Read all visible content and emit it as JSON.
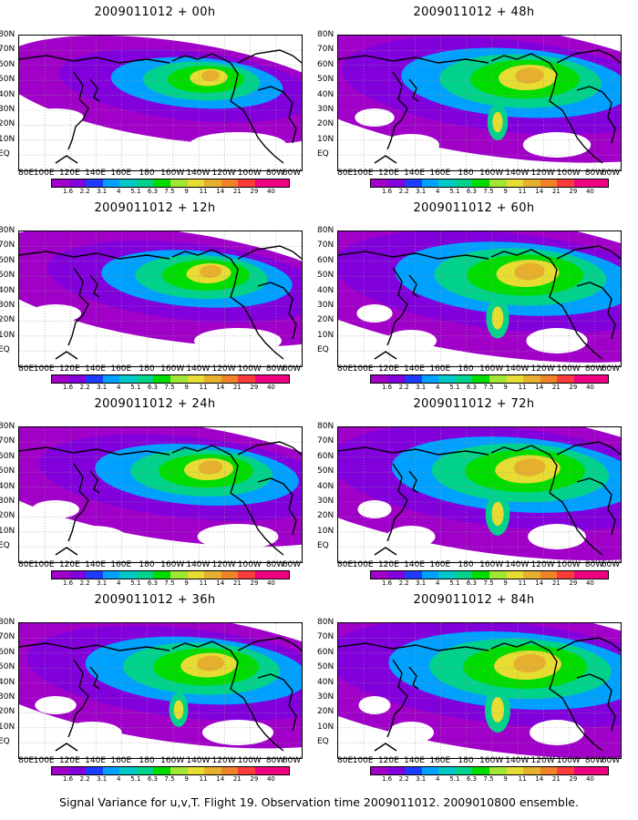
{
  "panels": [
    {
      "title": "2009011012 + 00h"
    },
    {
      "title": "2009011012 + 48h"
    },
    {
      "title": "2009011012 + 12h"
    },
    {
      "title": "2009011012 + 60h"
    },
    {
      "title": "2009011012 + 24h"
    },
    {
      "title": "2009011012 + 72h"
    },
    {
      "title": "2009011012 + 36h"
    },
    {
      "title": "2009011012 + 84h"
    }
  ],
  "lat_labels": [
    "80N",
    "70N",
    "60N",
    "50N",
    "40N",
    "30N",
    "20N",
    "10N",
    "EQ"
  ],
  "lon_labels": [
    "80E",
    "100E",
    "120E",
    "140E",
    "160E",
    "180",
    "160W",
    "140W",
    "120W",
    "100W",
    "80W",
    "60W"
  ],
  "colorbar": {
    "labels": [
      "1.6",
      "2.2",
      "3.1",
      "4",
      "5.1",
      "6.3",
      "7.5",
      "9",
      "11",
      "14",
      "21",
      "29",
      "40"
    ],
    "colors": [
      "#a000c8",
      "#8200dc",
      "#1e3cff",
      "#00a0ff",
      "#00c8c8",
      "#00d28c",
      "#00dc00",
      "#a0e632",
      "#e6dc32",
      "#e6af2d",
      "#f08228",
      "#fa3c3c",
      "#f00082"
    ]
  },
  "caption": "Signal Variance for u,v,T. Flight 19. Observation time 2009011012. 2009010800 ensemble."
}
